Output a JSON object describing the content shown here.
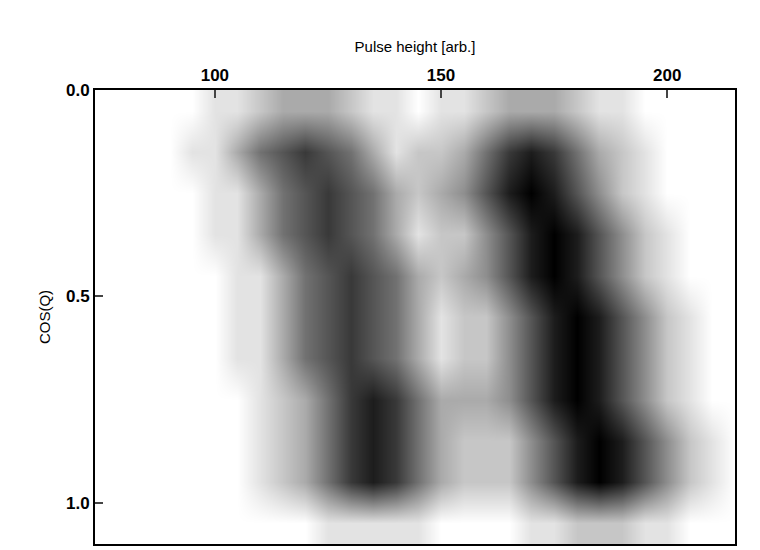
{
  "chart_data": {
    "type": "heatmap",
    "x_label": "Pulse height [arb.]",
    "y_label": "COS(Q)",
    "x": [
      75,
      80,
      85,
      90,
      95,
      100,
      105,
      110,
      115,
      120,
      125,
      130,
      135,
      140,
      145,
      150,
      155,
      160,
      165,
      170,
      175,
      180,
      185,
      190,
      195,
      200,
      205,
      210,
      215
    ],
    "y": [
      0.05,
      0.15,
      0.25,
      0.35,
      0.45,
      0.55,
      0.65,
      0.75,
      0.85,
      0.95,
      1.05
    ],
    "z": [
      [
        0,
        0,
        0,
        0,
        0,
        1,
        1,
        2,
        3,
        3,
        3,
        2,
        1,
        1,
        0,
        1,
        1,
        2,
        3,
        3,
        3,
        2,
        1,
        1,
        0,
        0,
        0,
        0,
        0
      ],
      [
        0,
        0,
        0,
        0,
        1,
        1,
        3,
        5,
        6,
        7,
        6,
        5,
        3,
        1,
        2,
        2,
        3,
        5,
        7,
        8,
        7,
        5,
        3,
        2,
        1,
        0,
        0,
        0,
        0
      ],
      [
        0,
        0,
        0,
        0,
        0,
        1,
        1,
        3,
        5,
        6,
        7,
        6,
        5,
        3,
        2,
        3,
        4,
        6,
        8,
        9,
        8,
        6,
        4,
        2,
        1,
        0,
        0,
        0,
        0
      ],
      [
        0,
        0,
        0,
        0,
        0,
        1,
        1,
        3,
        5,
        6,
        7,
        6,
        5,
        3,
        1,
        2,
        2,
        4,
        6,
        8,
        9,
        8,
        6,
        4,
        2,
        1,
        0,
        0,
        0
      ],
      [
        0,
        0,
        0,
        0,
        0,
        0,
        1,
        1,
        3,
        5,
        6,
        7,
        6,
        5,
        3,
        2,
        3,
        4,
        6,
        8,
        9,
        8,
        6,
        4,
        2,
        1,
        0,
        0,
        0
      ],
      [
        0,
        0,
        0,
        0,
        0,
        0,
        1,
        1,
        3,
        5,
        6,
        7,
        6,
        5,
        3,
        1,
        2,
        2,
        4,
        6,
        8,
        9,
        8,
        6,
        4,
        2,
        1,
        0,
        0
      ],
      [
        0,
        0,
        0,
        0,
        0,
        0,
        1,
        1,
        3,
        5,
        6,
        7,
        6,
        5,
        3,
        1,
        2,
        2,
        4,
        6,
        8,
        9,
        8,
        6,
        4,
        2,
        1,
        0,
        0
      ],
      [
        0,
        0,
        0,
        0,
        0,
        0,
        0,
        1,
        2,
        3,
        5,
        7,
        8,
        7,
        5,
        3,
        3,
        3,
        4,
        6,
        8,
        9,
        8,
        6,
        4,
        2,
        1,
        0,
        0
      ],
      [
        0,
        0,
        0,
        0,
        0,
        0,
        0,
        1,
        2,
        3,
        5,
        7,
        8,
        7,
        5,
        3,
        2,
        2,
        2,
        4,
        6,
        8,
        9,
        8,
        6,
        4,
        2,
        1,
        0
      ],
      [
        0,
        0,
        0,
        0,
        0,
        0,
        0,
        1,
        2,
        3,
        5,
        7,
        8,
        7,
        5,
        3,
        2,
        2,
        2,
        4,
        6,
        8,
        9,
        8,
        6,
        4,
        2,
        1,
        0
      ],
      [
        0,
        0,
        0,
        0,
        0,
        0,
        0,
        0,
        0,
        0,
        1,
        1,
        1,
        1,
        1,
        0,
        0,
        0,
        0,
        1,
        1,
        2,
        2,
        2,
        1,
        1,
        0,
        0,
        0
      ]
    ],
    "xlim": [
      73.5,
      215
    ],
    "xticks": [
      100,
      150,
      200
    ],
    "ylim": [
      1.1,
      0
    ],
    "yticks": [
      {
        "value": 0,
        "label": "0.0"
      },
      {
        "value": 0.5,
        "label": "0.5"
      },
      {
        "value": 1,
        "label": "1.0"
      }
    ],
    "color": "#000000"
  }
}
